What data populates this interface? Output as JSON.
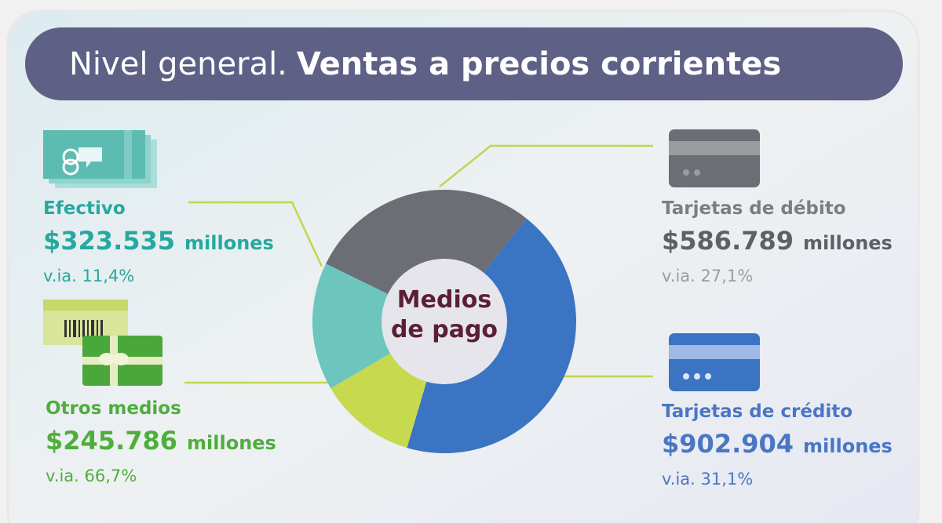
{
  "chart_data": {
    "type": "donut",
    "title_lead": "Nivel general.",
    "title": "Ventas a precios corrientes",
    "center_label": [
      "Medios",
      "de pago"
    ],
    "categories": [
      "Tarjetas de débito",
      "Tarjetas de crédito",
      "Otros medios",
      "Efectivo"
    ],
    "values": [
      586789,
      902904,
      245786,
      323535
    ],
    "value_labels": [
      "$586.789",
      "$902.904",
      "$245.786",
      "$323.535"
    ],
    "unit": "millones",
    "yoy_labels": [
      "v.ia. 27,1%",
      "v.ia. 31,1%",
      "v.ia. 66,7%",
      "v.ia. 11,4%"
    ],
    "colors": [
      "#6b6e74",
      "#3a74c2",
      "#c6d94f",
      "#6dc6be"
    ],
    "label_colors": [
      "#7b7d82",
      "#4a76c4",
      "#4eae3c",
      "#27a89f"
    ]
  }
}
